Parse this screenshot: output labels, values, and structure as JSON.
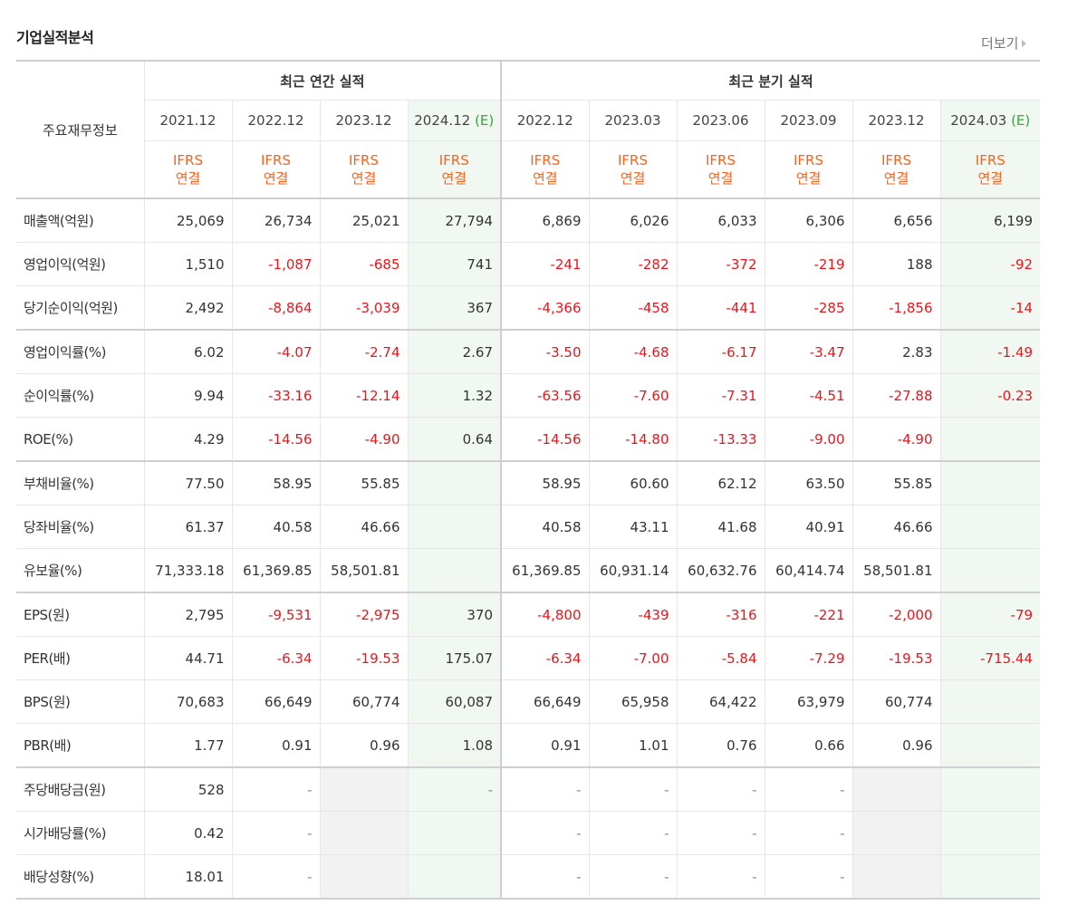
{
  "title": "기업실적분석",
  "more_label": "더보기",
  "header": {
    "corner": "주요재무정보",
    "annual_group": "최근 연간 실적",
    "quarter_group": "최근 분기 실적",
    "annual_dates": [
      "2021.12",
      "2022.12",
      "2023.12",
      "2024.12"
    ],
    "quarter_dates": [
      "2022.12",
      "2023.03",
      "2023.06",
      "2023.09",
      "2023.12",
      "2024.03"
    ],
    "estimate_mark": "(E)",
    "ifrs_line1": "IFRS",
    "ifrs_line2": "연결"
  },
  "rows": [
    {
      "label": "매출액(억원)",
      "cells": [
        "25,069",
        "26,734",
        "25,021",
        "27,794",
        "6,869",
        "6,026",
        "6,033",
        "6,306",
        "6,656",
        "6,199"
      ]
    },
    {
      "label": "영업이익(억원)",
      "cells": [
        "1,510",
        "-1,087",
        "-685",
        "741",
        "-241",
        "-282",
        "-372",
        "-219",
        "188",
        "-92"
      ]
    },
    {
      "label": "당기순이익(억원)",
      "cells": [
        "2,492",
        "-8,864",
        "-3,039",
        "367",
        "-4,366",
        "-458",
        "-441",
        "-285",
        "-1,856",
        "-14"
      ]
    },
    {
      "label": "영업이익률(%)",
      "cells": [
        "6.02",
        "-4.07",
        "-2.74",
        "2.67",
        "-3.50",
        "-4.68",
        "-6.17",
        "-3.47",
        "2.83",
        "-1.49"
      ]
    },
    {
      "label": "순이익률(%)",
      "cells": [
        "9.94",
        "-33.16",
        "-12.14",
        "1.32",
        "-63.56",
        "-7.60",
        "-7.31",
        "-4.51",
        "-27.88",
        "-0.23"
      ]
    },
    {
      "label": "ROE(%)",
      "cells": [
        "4.29",
        "-14.56",
        "-4.90",
        "0.64",
        "-14.56",
        "-14.80",
        "-13.33",
        "-9.00",
        "-4.90",
        ""
      ]
    },
    {
      "label": "부채비율(%)",
      "cells": [
        "77.50",
        "58.95",
        "55.85",
        "",
        "58.95",
        "60.60",
        "62.12",
        "63.50",
        "55.85",
        ""
      ]
    },
    {
      "label": "당좌비율(%)",
      "cells": [
        "61.37",
        "40.58",
        "46.66",
        "",
        "40.58",
        "43.11",
        "41.68",
        "40.91",
        "46.66",
        ""
      ]
    },
    {
      "label": "유보율(%)",
      "cells": [
        "71,333.18",
        "61,369.85",
        "58,501.81",
        "",
        "61,369.85",
        "60,931.14",
        "60,632.76",
        "60,414.74",
        "58,501.81",
        ""
      ]
    },
    {
      "label": "EPS(원)",
      "cells": [
        "2,795",
        "-9,531",
        "-2,975",
        "370",
        "-4,800",
        "-439",
        "-316",
        "-221",
        "-2,000",
        "-79"
      ]
    },
    {
      "label": "PER(배)",
      "cells": [
        "44.71",
        "-6.34",
        "-19.53",
        "175.07",
        "-6.34",
        "-7.00",
        "-5.84",
        "-7.29",
        "-19.53",
        "-715.44"
      ]
    },
    {
      "label": "BPS(원)",
      "cells": [
        "70,683",
        "66,649",
        "60,774",
        "60,087",
        "66,649",
        "65,958",
        "64,422",
        "63,979",
        "60,774",
        ""
      ]
    },
    {
      "label": "PBR(배)",
      "cells": [
        "1.77",
        "0.91",
        "0.96",
        "1.08",
        "0.91",
        "1.01",
        "0.76",
        "0.66",
        "0.96",
        ""
      ]
    },
    {
      "label": "주당배당금(원)",
      "cells": [
        "528",
        "-",
        "",
        "-",
        "-",
        "-",
        "-",
        "-",
        "",
        ""
      ]
    },
    {
      "label": "시가배당률(%)",
      "cells": [
        "0.42",
        "-",
        "",
        "",
        "-",
        "-",
        "-",
        "-",
        "",
        ""
      ]
    },
    {
      "label": "배당성향(%)",
      "cells": [
        "18.01",
        "-",
        "",
        "",
        "-",
        "-",
        "-",
        "-",
        "",
        ""
      ]
    }
  ],
  "colors": {
    "negative": "#e8161c",
    "ifrs": "#f26522",
    "estimate_bg": "#f1f8f1",
    "empty_bg": "#f2f2f2",
    "estimate_mark": "#3aa63a"
  }
}
